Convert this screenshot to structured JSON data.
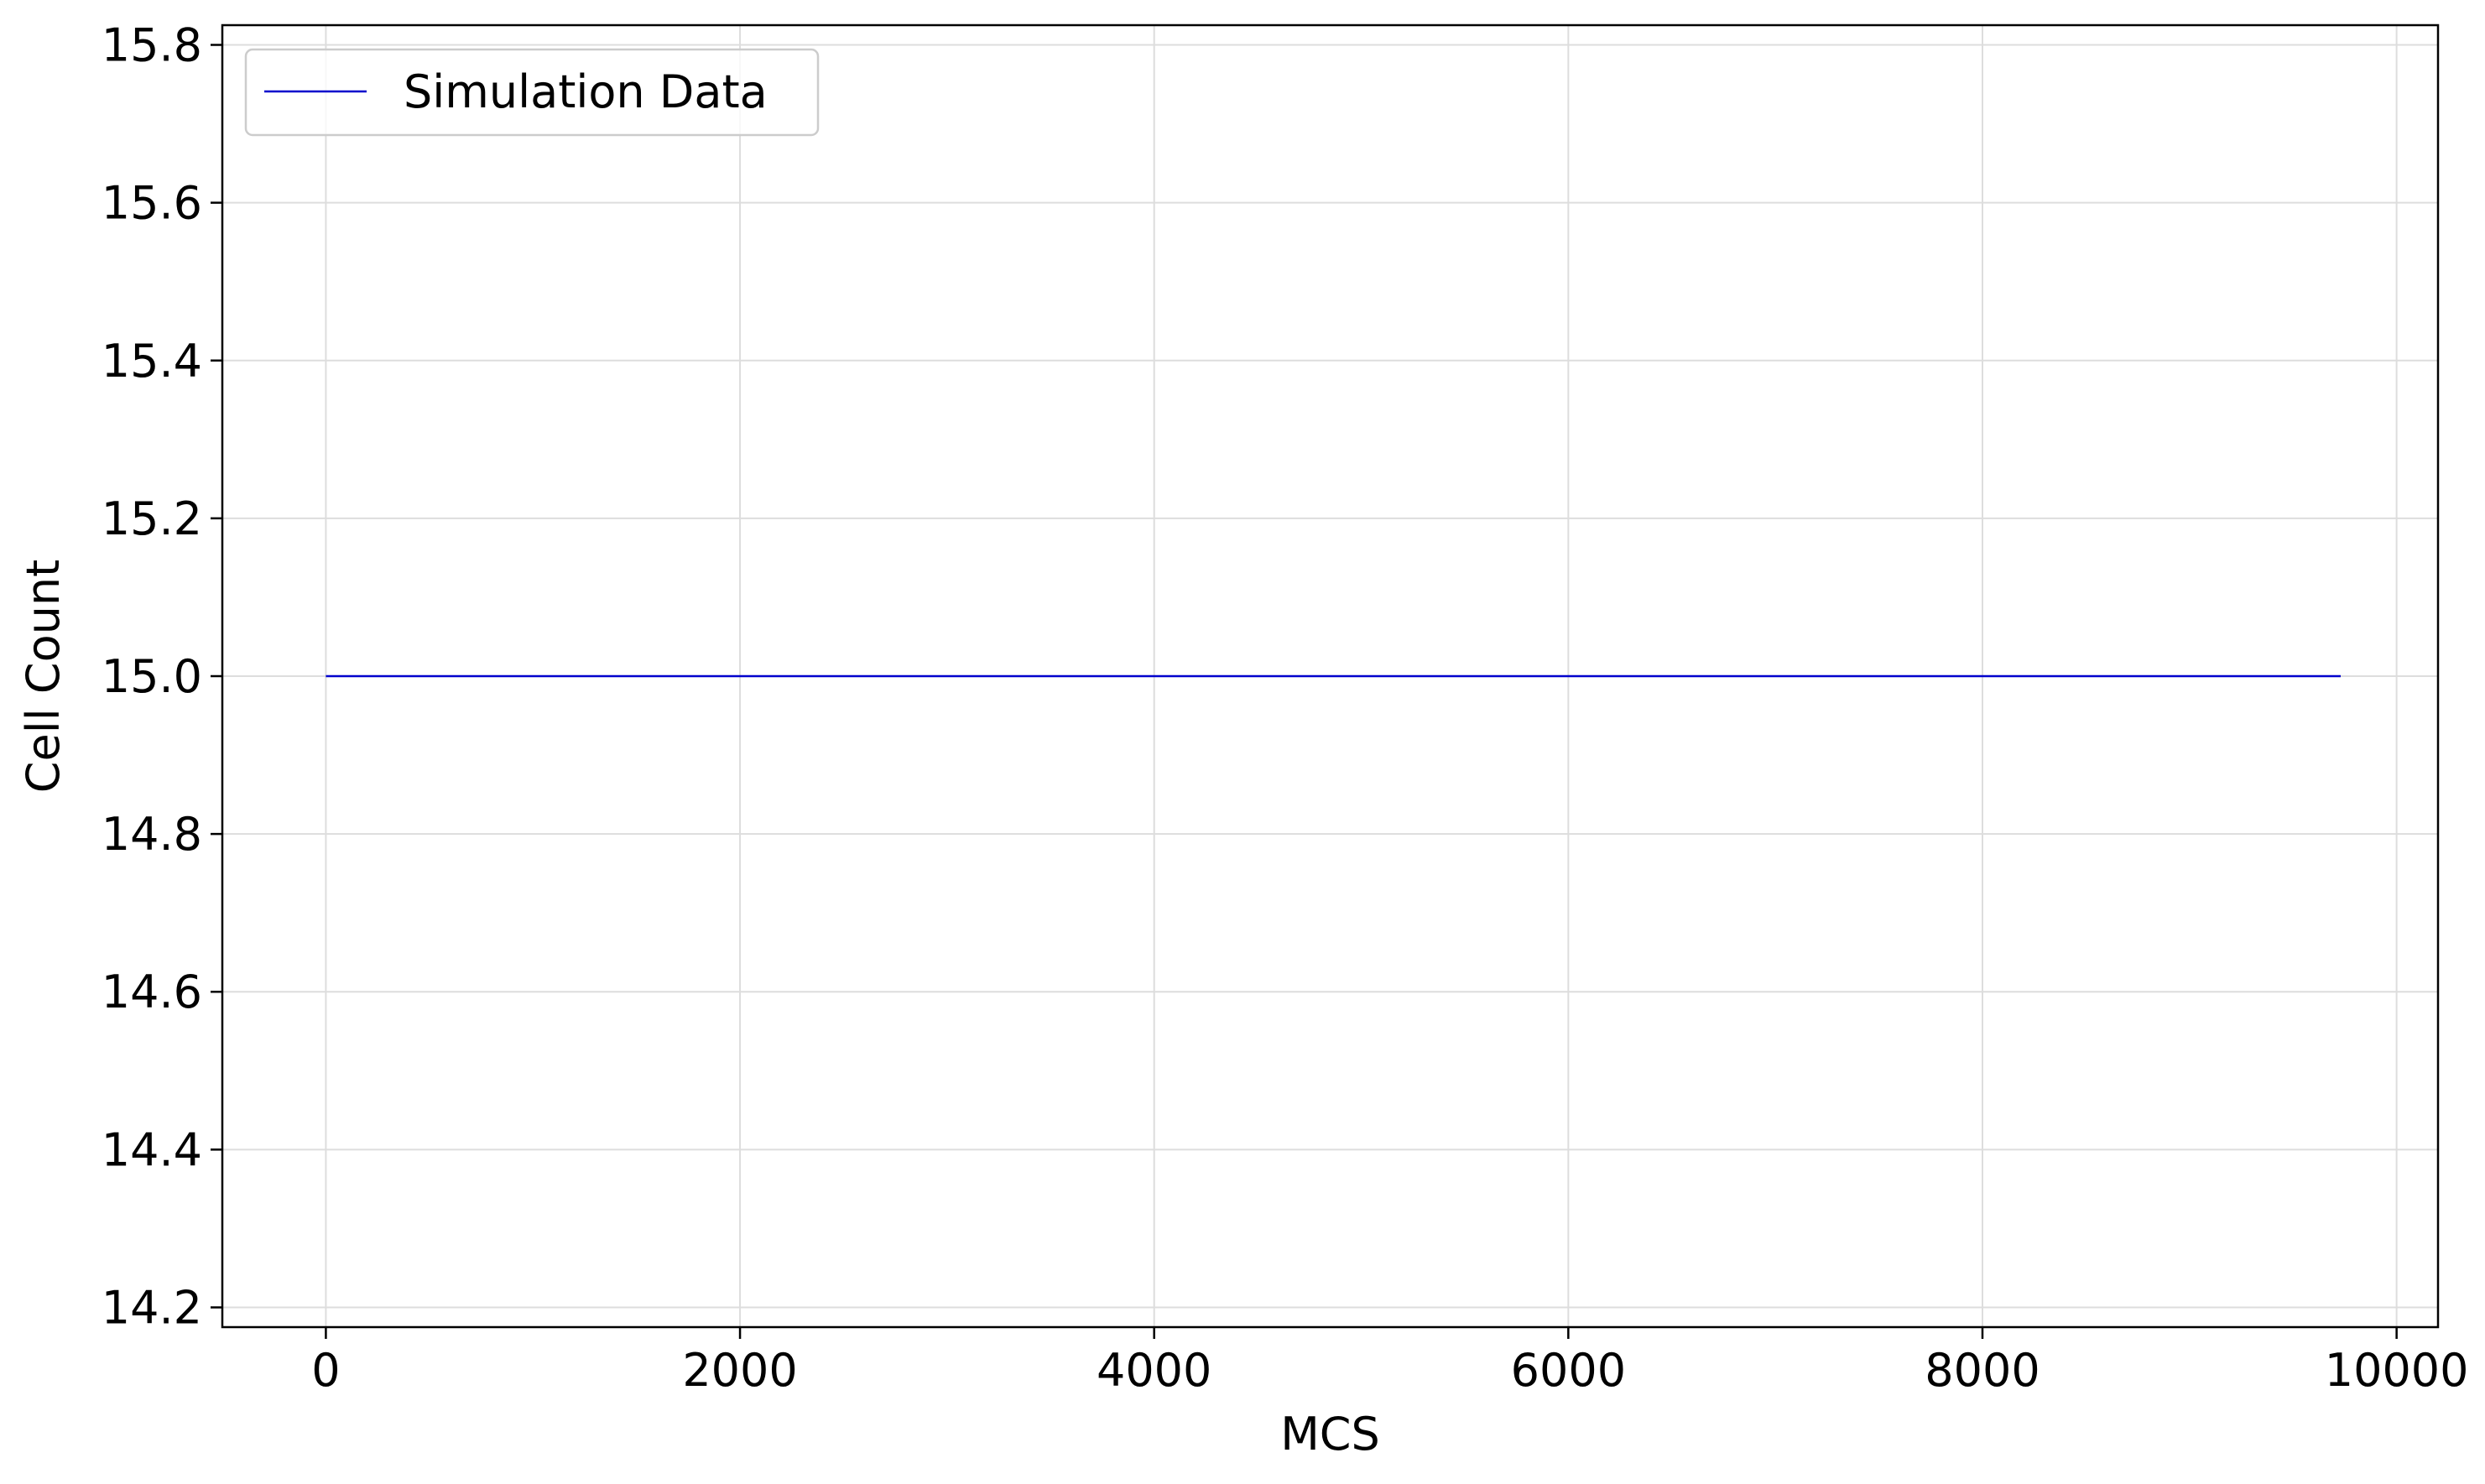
{
  "chart_data": {
    "type": "line",
    "title": "",
    "xlabel": "MCS",
    "ylabel": "Cell Count",
    "xlim": [
      -500,
      10200
    ],
    "ylim": [
      14.175,
      15.825
    ],
    "x_ticks": [
      0,
      2000,
      4000,
      6000,
      8000,
      10000
    ],
    "x_tick_labels": [
      "0",
      "2000",
      "4000",
      "6000",
      "8000",
      "10000"
    ],
    "y_ticks": [
      14.2,
      14.4,
      14.6,
      14.8,
      15.0,
      15.2,
      15.4,
      15.6,
      15.8
    ],
    "y_tick_labels": [
      "14.2",
      "14.4",
      "14.6",
      "14.8",
      "15.0",
      "15.2",
      "15.4",
      "15.6",
      "15.8"
    ],
    "grid": true,
    "legend": {
      "position": "top-left"
    },
    "series": [
      {
        "name": "Simulation Data",
        "color": "#0000cc",
        "x": [
          0,
          9730
        ],
        "y": [
          15.0,
          15.0
        ]
      }
    ]
  }
}
